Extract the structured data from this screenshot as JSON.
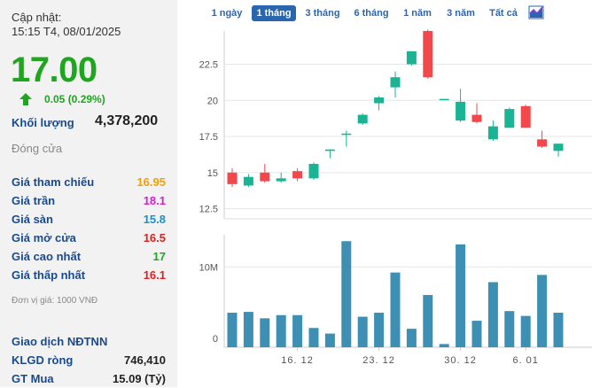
{
  "info": {
    "updated_label": "Cập nhật:",
    "updated_time": "15:15 T4, 08/01/2025",
    "price": "17.00",
    "change": "0.05 (0.29%)",
    "volume_label": "Khối lượng",
    "volume_value": "4,378,200",
    "status": "Đóng cửa",
    "rows": [
      {
        "label": "Giá tham chiếu",
        "value": "16.95",
        "color": "#f0a000"
      },
      {
        "label": "Giá trần",
        "value": "18.1",
        "color": "#d020d0"
      },
      {
        "label": "Giá sàn",
        "value": "15.8",
        "color": "#1a8fd0"
      },
      {
        "label": "Giá mở cửa",
        "value": "16.5",
        "color": "#e02020"
      },
      {
        "label": "Giá cao nhất",
        "value": "17",
        "color": "#1fa51f"
      },
      {
        "label": "Giá thấp nhất",
        "value": "16.1",
        "color": "#e02020"
      }
    ],
    "unit_note": "Đơn vị giá: 1000 VNĐ",
    "foreign_title": "Giao dịch NĐTNN",
    "foreign_rows": [
      {
        "label": "KLGD ròng",
        "value": "746,410"
      },
      {
        "label": "GT Mua",
        "value": "15.09 (Tỷ)"
      }
    ]
  },
  "tabs": [
    "1 ngày",
    "1 tháng",
    "3 tháng",
    "6 tháng",
    "1 năm",
    "3 năm",
    "Tất cả"
  ],
  "active_tab": "1 tháng",
  "icons": {
    "chart_type": "area-chart-icon",
    "arrow": "arrow-up-icon"
  },
  "colors": {
    "up": "#1fa51f",
    "down": "#e03a3a",
    "candle_up": "#1ab394",
    "candle_down": "#f2484b",
    "volume": "#3d8fb3",
    "accent": "#2a66b0"
  },
  "chart_data": {
    "type": "candlestick",
    "price_ticks": [
      "12.5",
      "15",
      "17.5",
      "20",
      "22.5"
    ],
    "volume_ticks": [
      "0",
      "10M"
    ],
    "x_tick_labels": [
      "16. 12",
      "23. 12",
      "30. 12",
      "6. 01"
    ],
    "price_range": [
      11.8,
      24.8
    ],
    "volume_range": [
      0,
      14000000
    ],
    "candles": [
      {
        "date": "10. 12",
        "open": 15.0,
        "high": 15.3,
        "low": 14.0,
        "close": 14.2,
        "volume": 4300000
      },
      {
        "date": "11. 12",
        "open": 14.1,
        "high": 14.9,
        "low": 14.0,
        "close": 14.7,
        "volume": 4400000
      },
      {
        "date": "12. 12",
        "open": 15.0,
        "high": 15.6,
        "low": 14.3,
        "close": 14.4,
        "volume": 3600000
      },
      {
        "date": "13. 12",
        "open": 14.4,
        "high": 15.0,
        "low": 14.3,
        "close": 14.6,
        "volume": 4000000
      },
      {
        "date": "16. 12",
        "open": 15.1,
        "high": 15.3,
        "low": 14.4,
        "close": 14.6,
        "volume": 4000000
      },
      {
        "date": "17. 12",
        "open": 14.6,
        "high": 15.7,
        "low": 14.5,
        "close": 15.6,
        "volume": 2400000
      },
      {
        "date": "18. 12",
        "open": 16.5,
        "high": 16.6,
        "low": 16.0,
        "close": 16.6,
        "volume": 1700000
      },
      {
        "date": "19. 12",
        "open": 17.7,
        "high": 17.9,
        "low": 16.8,
        "close": 17.7,
        "volume": 13200000
      },
      {
        "date": "20. 12",
        "open": 18.4,
        "high": 19.1,
        "low": 18.3,
        "close": 19.0,
        "volume": 3800000
      },
      {
        "date": "23. 12",
        "open": 19.8,
        "high": 20.3,
        "low": 19.3,
        "close": 20.2,
        "volume": 4300000
      },
      {
        "date": "24. 12",
        "open": 20.9,
        "high": 22.0,
        "low": 20.2,
        "close": 21.6,
        "volume": 9300000
      },
      {
        "date": "25. 12",
        "open": 22.5,
        "high": 23.4,
        "low": 22.4,
        "close": 23.4,
        "volume": 2300000
      },
      {
        "date": "26. 12",
        "open": 24.8,
        "high": 24.9,
        "low": 21.5,
        "close": 21.6,
        "volume": 6500000
      },
      {
        "date": "27. 12",
        "open": 20.1,
        "high": 20.1,
        "low": 20.0,
        "close": 20.1,
        "volume": 400000
      },
      {
        "date": "30. 12",
        "open": 18.6,
        "high": 20.8,
        "low": 18.5,
        "close": 19.9,
        "volume": 12800000
      },
      {
        "date": "31. 12",
        "open": 19.0,
        "high": 19.8,
        "low": 18.4,
        "close": 18.5,
        "volume": 3300000
      },
      {
        "date": "2. 01",
        "open": 17.3,
        "high": 18.6,
        "low": 17.2,
        "close": 18.2,
        "volume": 8100000
      },
      {
        "date": "3. 01",
        "open": 18.1,
        "high": 19.5,
        "low": 18.1,
        "close": 19.4,
        "volume": 4500000
      },
      {
        "date": "6. 01",
        "open": 19.6,
        "high": 19.7,
        "low": 18.1,
        "close": 18.1,
        "volume": 3900000
      },
      {
        "date": "7. 01",
        "open": 17.3,
        "high": 17.9,
        "low": 16.7,
        "close": 16.8,
        "volume": 9000000
      },
      {
        "date": "8. 01",
        "open": 16.5,
        "high": 17.0,
        "low": 16.1,
        "close": 17.0,
        "volume": 4300000
      }
    ]
  }
}
